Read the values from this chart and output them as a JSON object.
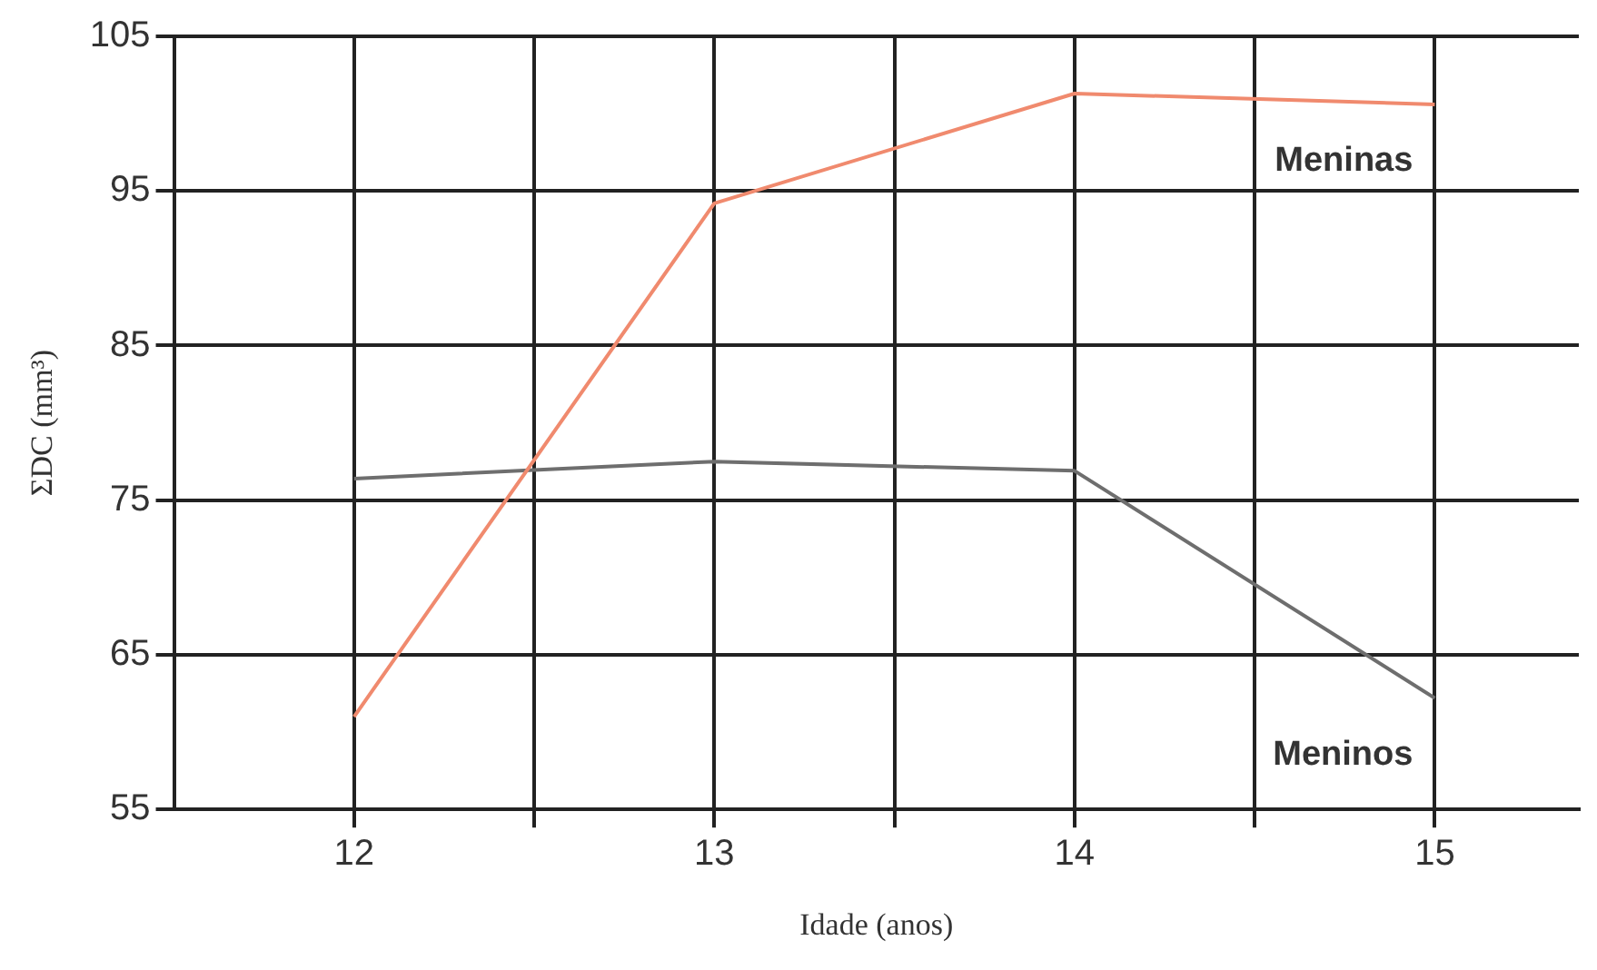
{
  "chart_data": {
    "type": "line",
    "xlabel": "Idade (anos)",
    "ylabel": "ΣDC (mm³)",
    "x": [
      12,
      13,
      14,
      15
    ],
    "series": [
      {
        "name": "Meninas",
        "color": "#f08a6e",
        "values": [
          61,
          94.2,
          101.3,
          100.6
        ]
      },
      {
        "name": "Meninos",
        "color": "#6e6e6e",
        "values": [
          76.4,
          77.5,
          76.9,
          62.2
        ]
      }
    ],
    "xlim": [
      11.5,
      15.4
    ],
    "xticks": [
      12,
      {
        "value": 12.5,
        "label": null
      },
      13,
      {
        "value": 13.5,
        "label": null
      },
      14,
      {
        "value": 14.5,
        "label": null
      },
      15
    ],
    "ylim": [
      55,
      105
    ],
    "yticks": [
      55,
      65,
      75,
      85,
      95,
      105
    ],
    "grid": true,
    "legend": false,
    "marker": "none",
    "line_style": "solid"
  }
}
